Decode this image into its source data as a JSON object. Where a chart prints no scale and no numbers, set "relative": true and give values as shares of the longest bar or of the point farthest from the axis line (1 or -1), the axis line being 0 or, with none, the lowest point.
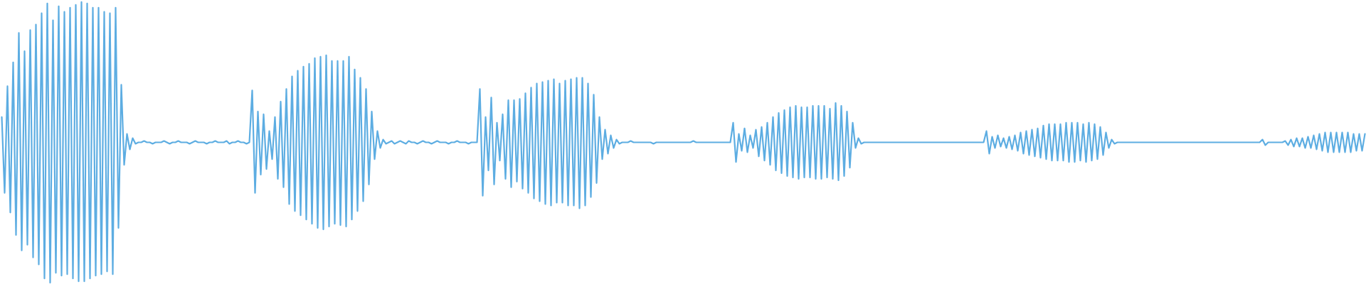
{
  "chart_data": {
    "type": "line",
    "relative": true,
    "categories": [
      null,
      null,
      null,
      null,
      null,
      null,
      null,
      null,
      null,
      null,
      null,
      null,
      null,
      null,
      null,
      null,
      null,
      null,
      null,
      null,
      null,
      null,
      null,
      null,
      null,
      null,
      null,
      null,
      null,
      null,
      null,
      null,
      null,
      null,
      null,
      null,
      null,
      null,
      null,
      null,
      null,
      null,
      null,
      null,
      null,
      null,
      null,
      null,
      null,
      null,
      null,
      null,
      null,
      null,
      null,
      null,
      null,
      null,
      null,
      null,
      null,
      null,
      null,
      null,
      null,
      null,
      null,
      null,
      null,
      null,
      null,
      null,
      null,
      null,
      null,
      null,
      null,
      null,
      null,
      null,
      null,
      null,
      null,
      null,
      null,
      null,
      null,
      null,
      null,
      null,
      null,
      null,
      null,
      null,
      null,
      null,
      null,
      null,
      null,
      null,
      null,
      null,
      null,
      null,
      null,
      null,
      null,
      null,
      null,
      null,
      null,
      null,
      null,
      null,
      null,
      null,
      null,
      null,
      null,
      null,
      null,
      null,
      null,
      null,
      null,
      null,
      null,
      null,
      null,
      null,
      null,
      null,
      null,
      null,
      null,
      null,
      null,
      null,
      null,
      null,
      null,
      null,
      null,
      null,
      null,
      null,
      null,
      null,
      null,
      null,
      null,
      null,
      null,
      null,
      null,
      null,
      null,
      null,
      null,
      null,
      null,
      null,
      null,
      null,
      null,
      null,
      null,
      null,
      null,
      null,
      null,
      null,
      null,
      null,
      null,
      null,
      null,
      null,
      null,
      null,
      null,
      null,
      null,
      null,
      null,
      null,
      null,
      null,
      null,
      null,
      null,
      null,
      null,
      null,
      null,
      null,
      null,
      null,
      null,
      null,
      null,
      null,
      null,
      null,
      null,
      null,
      null,
      null,
      null,
      null,
      null,
      null,
      null,
      null,
      null,
      null,
      null,
      null,
      null,
      null,
      null,
      null,
      null,
      null,
      null,
      null,
      null,
      null,
      null,
      null,
      null,
      null,
      null,
      null,
      null,
      null,
      null,
      null,
      null,
      null,
      null,
      null,
      null,
      null,
      null,
      null,
      null,
      null,
      null,
      null,
      null,
      null,
      null,
      null,
      null,
      null,
      null,
      null,
      null,
      null,
      null,
      null,
      null,
      null,
      null,
      null,
      null,
      null,
      null,
      null,
      null,
      null,
      null,
      null,
      null,
      null,
      null,
      null,
      null,
      null,
      null,
      null,
      null,
      null,
      null,
      null,
      null,
      null,
      null,
      null,
      null,
      null,
      null,
      null,
      null,
      null,
      null,
      null,
      null,
      null,
      null,
      null,
      null,
      null,
      null,
      null,
      null,
      null,
      null,
      null,
      null,
      null,
      null,
      null,
      null,
      null,
      null,
      null,
      null,
      null,
      null,
      null,
      null,
      null,
      null,
      null,
      null,
      null,
      null,
      null,
      null,
      null,
      null,
      null,
      null,
      null,
      null,
      null,
      null,
      null,
      null,
      null,
      null,
      null,
      null,
      null,
      null,
      null,
      null,
      null,
      null,
      null,
      null,
      null,
      null,
      null,
      null,
      null,
      null,
      null,
      null,
      null,
      null,
      null,
      null,
      null,
      null,
      null,
      null,
      null,
      null,
      null,
      null,
      null,
      null,
      null,
      null,
      null,
      null,
      null,
      null,
      null,
      null,
      null,
      null,
      null,
      null,
      null,
      null,
      null,
      null,
      null,
      null,
      null,
      null,
      null,
      null,
      null,
      null,
      null,
      null,
      null,
      null,
      null,
      null,
      null,
      null,
      null,
      null,
      null,
      null,
      null,
      null,
      null,
      null,
      null,
      null,
      null,
      null,
      null,
      null,
      null,
      null,
      null,
      null,
      null,
      null,
      null,
      null,
      null,
      null,
      null,
      null,
      null,
      null,
      null,
      null,
      null,
      null,
      null,
      null,
      null,
      null,
      null,
      null,
      null,
      null,
      null,
      null,
      null,
      null,
      null,
      null,
      null,
      null,
      null,
      null,
      null,
      null,
      null,
      null,
      null,
      null,
      null,
      null,
      null,
      null,
      null,
      null,
      null,
      null,
      null,
      null,
      null,
      null,
      null,
      null,
      null,
      null,
      null
    ],
    "series": [
      {
        "color": "#5dade2",
        "values": [
          0.59,
          0.32,
          0.7,
          0.25,
          0.785,
          0.17,
          0.89,
          0.115,
          0.825,
          0.135,
          0.9,
          0.09,
          0.92,
          0.065,
          0.96,
          0.015,
          0.995,
          0,
          0.935,
          0.035,
          0.985,
          0.025,
          0.965,
          0.03,
          0.98,
          0.015,
          0.99,
          0.005,
          1,
          0.005,
          0.995,
          0.015,
          0.98,
          0.025,
          0.98,
          0.03,
          0.965,
          0.04,
          0.96,
          0.03,
          0.98,
          0.195,
          0.705,
          0.42,
          0.53,
          0.475,
          0.515,
          0.495,
          0.5,
          0.5,
          0.505,
          0.5,
          0.5,
          0.495,
          0.5,
          0.5,
          0.5,
          0.505,
          0.5,
          0.495,
          0.5,
          0.5,
          0.505,
          0.5,
          0.5,
          0.5,
          0.495,
          0.5,
          0.505,
          0.5,
          0.5,
          0.5,
          0.495,
          0.5,
          0.5,
          0.505,
          0.5,
          0.5,
          0.5,
          0.505,
          0.495,
          0.5,
          0.5,
          0.505,
          0.5,
          0.5,
          0.495,
          0.5,
          0.685,
          0.32,
          0.61,
          0.385,
          0.6,
          0.405,
          0.54,
          0.44,
          0.59,
          0.37,
          0.645,
          0.34,
          0.69,
          0.28,
          0.735,
          0.255,
          0.755,
          0.24,
          0.77,
          0.225,
          0.78,
          0.21,
          0.8,
          0.195,
          0.805,
          0.19,
          0.81,
          0.2,
          0.79,
          0.21,
          0.79,
          0.205,
          0.79,
          0.2,
          0.805,
          0.225,
          0.76,
          0.255,
          0.73,
          0.29,
          0.69,
          0.35,
          0.61,
          0.44,
          0.54,
          0.48,
          0.51,
          0.495,
          0.5,
          0.505,
          0.495,
          0.5,
          0.505,
          0.5,
          0.495,
          0.505,
          0.5,
          0.5,
          0.495,
          0.5,
          0.505,
          0.5,
          0.5,
          0.495,
          0.5,
          0.505,
          0.5,
          0.5,
          0.5,
          0.495,
          0.5,
          0.5,
          0.505,
          0.5,
          0.5,
          0.5,
          0.495,
          0.5,
          0.5,
          0.5,
          0.69,
          0.31,
          0.59,
          0.4,
          0.66,
          0.35,
          0.57,
          0.435,
          0.6,
          0.37,
          0.65,
          0.34,
          0.65,
          0.36,
          0.655,
          0.335,
          0.675,
          0.32,
          0.695,
          0.3,
          0.71,
          0.29,
          0.715,
          0.28,
          0.72,
          0.275,
          0.725,
          0.285,
          0.71,
          0.285,
          0.72,
          0.275,
          0.725,
          0.275,
          0.73,
          0.265,
          0.73,
          0.275,
          0.71,
          0.305,
          0.67,
          0.355,
          0.59,
          0.44,
          0.545,
          0.46,
          0.525,
          0.48,
          0.51,
          0.495,
          0.5,
          0.5,
          0.5,
          0.505,
          0.5,
          0.5,
          0.5,
          0.5,
          0.5,
          0.5,
          0.5,
          0.495,
          0.5,
          0.5,
          0.5,
          0.5,
          0.5,
          0.5,
          0.5,
          0.5,
          0.5,
          0.5,
          0.5,
          0.5,
          0.5,
          0.505,
          0.5,
          0.5,
          0.5,
          0.5,
          0.5,
          0.5,
          0.5,
          0.5,
          0.5,
          0.5,
          0.5,
          0.5,
          0.5,
          0.57,
          0.43,
          0.53,
          0.47,
          0.55,
          0.465,
          0.525,
          0.48,
          0.545,
          0.45,
          0.555,
          0.435,
          0.57,
          0.42,
          0.59,
          0.4,
          0.605,
          0.39,
          0.615,
          0.38,
          0.625,
          0.375,
          0.63,
          0.37,
          0.625,
          0.375,
          0.625,
          0.375,
          0.63,
          0.37,
          0.63,
          0.37,
          0.63,
          0.375,
          0.62,
          0.37,
          0.64,
          0.365,
          0.63,
          0.38,
          0.61,
          0.41,
          0.57,
          0.48,
          0.515,
          0.495,
          0.5,
          0.5,
          0.5,
          0.5,
          0.5,
          0.5,
          0.5,
          0.5,
          0.5,
          0.5,
          0.5,
          0.5,
          0.5,
          0.5,
          0.5,
          0.5,
          0.5,
          0.5,
          0.5,
          0.5,
          0.5,
          0.5,
          0.5,
          0.5,
          0.5,
          0.5,
          0.5,
          0.5,
          0.5,
          0.5,
          0.5,
          0.5,
          0.5,
          0.5,
          0.5,
          0.5,
          0.5,
          0.5,
          0.5,
          0.5,
          0.5,
          0.5,
          0.5,
          0.54,
          0.46,
          0.52,
          0.48,
          0.525,
          0.485,
          0.515,
          0.48,
          0.52,
          0.475,
          0.525,
          0.47,
          0.535,
          0.46,
          0.54,
          0.455,
          0.545,
          0.45,
          0.55,
          0.445,
          0.56,
          0.44,
          0.565,
          0.435,
          0.565,
          0.435,
          0.565,
          0.435,
          0.57,
          0.43,
          0.57,
          0.43,
          0.57,
          0.435,
          0.565,
          0.43,
          0.57,
          0.435,
          0.565,
          0.44,
          0.555,
          0.455,
          0.535,
          0.48,
          0.51,
          0.495,
          0.5,
          0.5,
          0.5,
          0.5,
          0.5,
          0.5,
          0.5,
          0.5,
          0.5,
          0.5,
          0.5,
          0.5,
          0.5,
          0.5,
          0.5,
          0.5,
          0.5,
          0.5,
          0.5,
          0.5,
          0.5,
          0.5,
          0.5,
          0.5,
          0.5,
          0.5,
          0.5,
          0.5,
          0.5,
          0.5,
          0.5,
          0.5,
          0.5,
          0.5,
          0.5,
          0.5,
          0.5,
          0.5,
          0.5,
          0.5,
          0.5,
          0.5,
          0.5,
          0.5,
          0.5,
          0.5,
          0.5,
          0.5,
          0.5,
          0.5,
          0.5,
          0.51,
          0.49,
          0.5,
          0.5,
          0.5,
          0.5,
          0.5,
          0.5,
          0.505,
          0.49,
          0.51,
          0.485,
          0.515,
          0.485,
          0.515,
          0.48,
          0.52,
          0.48,
          0.525,
          0.475,
          0.53,
          0.47,
          0.535,
          0.465,
          0.535,
          0.465,
          0.535,
          0.465,
          0.535,
          0.465,
          0.535,
          0.465,
          0.53,
          0.47,
          0.53,
          0.47,
          0.53
        ]
      }
    ]
  }
}
